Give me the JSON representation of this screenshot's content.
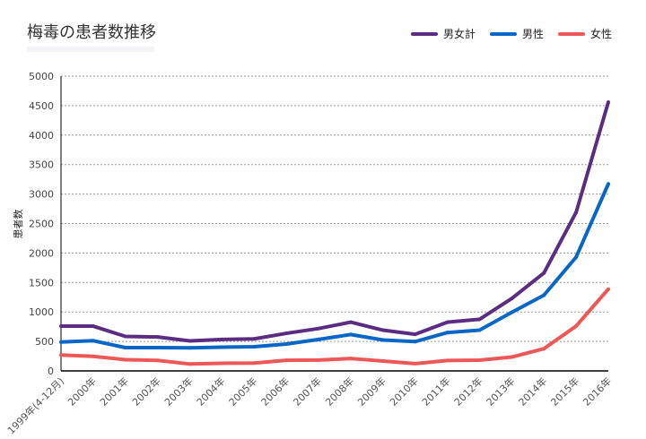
{
  "title": "梅毒の患者数推移",
  "chart_data": {
    "type": "line",
    "title": "梅毒の患者数推移",
    "ylabel": "患者数",
    "xlabel": "",
    "ylim": [
      0,
      5000
    ],
    "yticks": [
      0,
      500,
      1000,
      1500,
      2000,
      2500,
      3000,
      3500,
      4000,
      4500,
      5000
    ],
    "grid": true,
    "legend_position": "top-right",
    "categories": [
      "1999年(4-12月)",
      "2000年",
      "2001年",
      "2002年",
      "2003年",
      "2004年",
      "2005年",
      "2006年",
      "2007年",
      "2008年",
      "2009年",
      "2010年",
      "2011年",
      "2012年",
      "2013年",
      "2014年",
      "2015年",
      "2016年"
    ],
    "series": [
      {
        "name": "男女計",
        "color": "#5b2d82",
        "values": [
          759,
          759,
          585,
          575,
          509,
          533,
          543,
          637,
          719,
          827,
          691,
          621,
          827,
          875,
          1228,
          1661,
          2690,
          4559
        ]
      },
      {
        "name": "男性",
        "color": "#0866c6",
        "values": [
          490,
          512,
          395,
          396,
          392,
          403,
          410,
          456,
          534,
          617,
          524,
          497,
          650,
          692,
          993,
          1284,
          1930,
          3172
        ]
      },
      {
        "name": "女性",
        "color": "#ec5757",
        "values": [
          269,
          247,
          190,
          179,
          117,
          130,
          133,
          181,
          185,
          210,
          167,
          124,
          177,
          183,
          235,
          377,
          760,
          1387
        ]
      }
    ]
  }
}
